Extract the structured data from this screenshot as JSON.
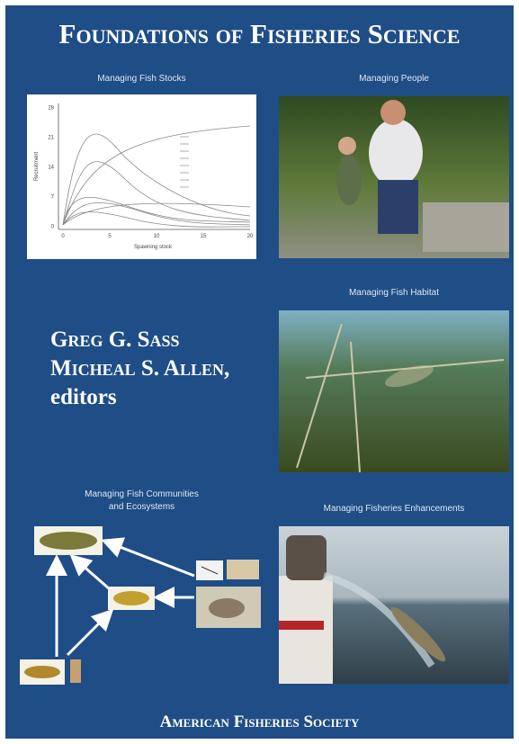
{
  "cover": {
    "title": "Foundations of Fisheries Science",
    "panels": {
      "stocks": "Managing Fish Stocks",
      "people": "Managing People",
      "habitat": "Managing Fish Habitat",
      "communities": [
        "Managing Fish Communities",
        "and Ecosystems"
      ],
      "enhancements": "Managing Fisheries Enhancements"
    },
    "stocks_chart": {
      "y_label": "Recruitment",
      "x_label": "Spawning stock",
      "yticks": [
        "28",
        "21",
        "14",
        "7",
        "0"
      ],
      "xticks": [
        "0",
        "5",
        "10",
        "15",
        "20"
      ]
    },
    "editors": [
      "Greg G. Sass",
      "Micheal S. Allen,",
      "editors"
    ],
    "publisher": "American Fisheries Society"
  }
}
